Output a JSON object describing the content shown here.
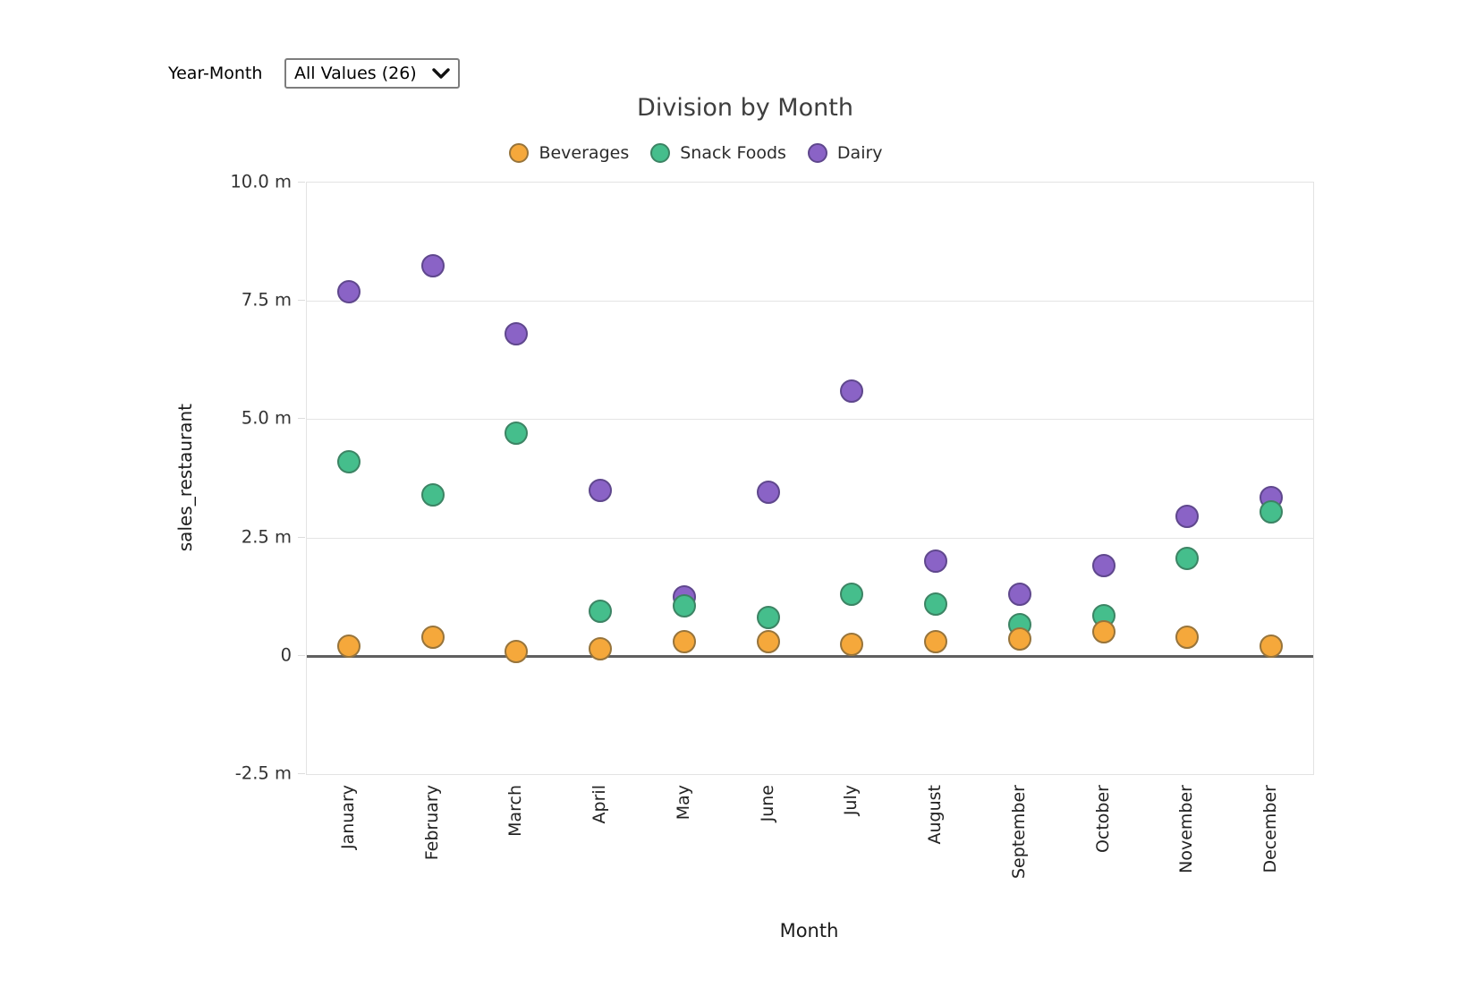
{
  "filter": {
    "label": "Year-Month",
    "value": "All Values (26)"
  },
  "chart_data": {
    "type": "scatter",
    "title": "Division by Month",
    "xlabel": "Month",
    "ylabel": "sales_restaurant",
    "units": "m",
    "grid": true,
    "legend_position": "top",
    "ylim": [
      -2.5,
      10
    ],
    "y_ticks": [
      {
        "label": "10.0 m",
        "value": 10
      },
      {
        "label": "7.5 m",
        "value": 7.5
      },
      {
        "label": "5.0 m",
        "value": 5
      },
      {
        "label": "2.5 m",
        "value": 2.5
      },
      {
        "label": "0",
        "value": 0
      },
      {
        "label": "-2.5 m",
        "value": -2.5
      }
    ],
    "categories": [
      "January",
      "February",
      "March",
      "April",
      "May",
      "June",
      "July",
      "August",
      "September",
      "October",
      "November",
      "December"
    ],
    "series": [
      {
        "name": "Beverages",
        "color": "#F5A83B",
        "stroke": "#97743B",
        "values": [
          0.2,
          0.4,
          0.1,
          0.15,
          0.3,
          0.3,
          0.25,
          0.3,
          0.35,
          0.5,
          0.4,
          0.2
        ]
      },
      {
        "name": "Snack Foods",
        "color": "#45BE8C",
        "stroke": "#3C8464",
        "values": [
          4.1,
          3.4,
          4.7,
          0.95,
          1.05,
          0.8,
          1.3,
          1.1,
          0.65,
          0.85,
          2.05,
          3.05
        ]
      },
      {
        "name": "Dairy",
        "color": "#8A63C6",
        "stroke": "#5F478D",
        "values": [
          7.7,
          8.25,
          6.8,
          3.5,
          1.25,
          3.45,
          5.6,
          2.0,
          1.3,
          1.9,
          2.95,
          3.35
        ]
      }
    ]
  }
}
